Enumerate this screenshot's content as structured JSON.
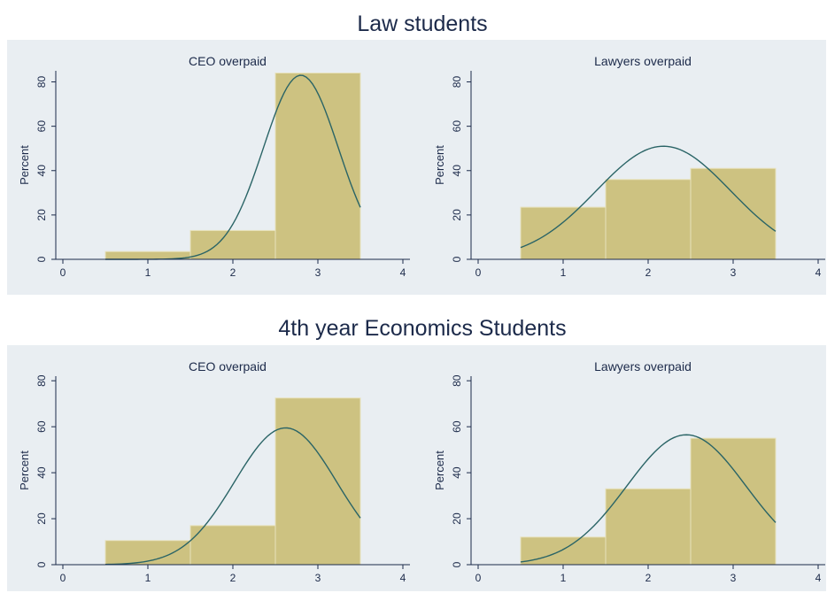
{
  "sections": [
    {
      "title": "Law students",
      "subplots": [
        {
          "title": "CEO overpaid"
        },
        {
          "title": "Lawyers overpaid"
        }
      ]
    },
    {
      "title": "4th year Economics Students",
      "subplots": [
        {
          "title": "CEO overpaid"
        },
        {
          "title": "Lawyers overpaid"
        }
      ]
    }
  ],
  "chart_data": [
    {
      "type": "bar",
      "title": "CEO overpaid",
      "group": "Law students",
      "ylabel": "Percent",
      "xlabel": "",
      "xlim": [
        0,
        4
      ],
      "ylim": [
        0,
        85
      ],
      "x_ticks": [
        0,
        1,
        2,
        3,
        4
      ],
      "y_ticks": [
        0,
        20,
        40,
        60,
        80
      ],
      "bins": [
        {
          "x0": 0.5,
          "x1": 1.5,
          "value": 3.5
        },
        {
          "x0": 1.5,
          "x1": 2.5,
          "value": 13
        },
        {
          "x0": 2.5,
          "x1": 3.5,
          "value": 84
        }
      ],
      "normal_curve": {
        "mean": 2.8,
        "sd": 0.44,
        "peak": 83
      }
    },
    {
      "type": "bar",
      "title": "Lawyers overpaid",
      "group": "Law students",
      "ylabel": "Percent",
      "xlabel": "",
      "xlim": [
        0,
        4
      ],
      "ylim": [
        0,
        85
      ],
      "x_ticks": [
        0,
        1,
        2,
        3,
        4
      ],
      "y_ticks": [
        0,
        20,
        40,
        60,
        80
      ],
      "bins": [
        {
          "x0": 0.5,
          "x1": 1.5,
          "value": 23.5
        },
        {
          "x0": 1.5,
          "x1": 2.5,
          "value": 36
        },
        {
          "x0": 2.5,
          "x1": 3.5,
          "value": 41
        }
      ],
      "normal_curve": {
        "mean": 2.18,
        "sd": 0.79,
        "peak": 51
      }
    },
    {
      "type": "bar",
      "title": "CEO overpaid",
      "group": "4th year Economics Students",
      "ylabel": "Percent",
      "xlabel": "",
      "xlim": [
        0,
        4
      ],
      "ylim": [
        0,
        82
      ],
      "x_ticks": [
        0,
        1,
        2,
        3,
        4
      ],
      "y_ticks": [
        0,
        20,
        40,
        60,
        80
      ],
      "bins": [
        {
          "x0": 0.5,
          "x1": 1.5,
          "value": 10.5
        },
        {
          "x0": 1.5,
          "x1": 2.5,
          "value": 17
        },
        {
          "x0": 2.5,
          "x1": 3.5,
          "value": 72.5
        }
      ],
      "normal_curve": {
        "mean": 2.62,
        "sd": 0.6,
        "peak": 59.5
      }
    },
    {
      "type": "bar",
      "title": "Lawyers overpaid",
      "group": "4th year Economics Students",
      "ylabel": "Percent",
      "xlabel": "",
      "xlim": [
        0,
        4
      ],
      "ylim": [
        0,
        82
      ],
      "x_ticks": [
        0,
        1,
        2,
        3,
        4
      ],
      "y_ticks": [
        0,
        20,
        40,
        60,
        80
      ],
      "bins": [
        {
          "x0": 0.5,
          "x1": 1.5,
          "value": 12
        },
        {
          "x0": 1.5,
          "x1": 2.5,
          "value": 33
        },
        {
          "x0": 2.5,
          "x1": 3.5,
          "value": 55
        }
      ],
      "normal_curve": {
        "mean": 2.45,
        "sd": 0.7,
        "peak": 56.5
      }
    }
  ],
  "colors": {
    "bar_fill": "#cdc281",
    "bar_edge": "#e8e2bd",
    "curve": "#2a6466",
    "axis": "#1c2a4a",
    "panel_bg": "#e9eef2"
  }
}
